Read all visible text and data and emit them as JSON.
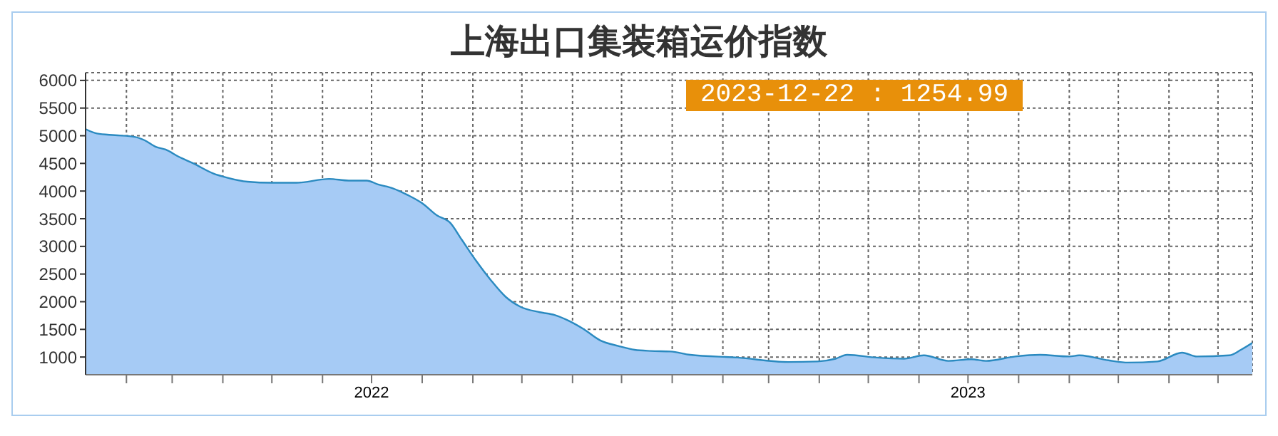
{
  "chart_data": {
    "type": "area",
    "title": "上海出口集装箱运价指数",
    "x": [
      "2022-01-07",
      "2022-01-14",
      "2022-01-25",
      "2022-02-06",
      "2022-02-12",
      "2022-02-19",
      "2022-02-25",
      "2022-03-05",
      "2022-03-14",
      "2022-03-26",
      "2022-04-04",
      "2022-04-16",
      "2022-05-01",
      "2022-05-16",
      "2022-06-05",
      "2022-06-17",
      "2022-06-28",
      "2022-07-05",
      "2022-07-14",
      "2022-07-23",
      "2022-08-01",
      "2022-08-10",
      "2022-08-18",
      "2022-08-25",
      "2022-09-03",
      "2022-09-12",
      "2022-09-21",
      "2022-09-30",
      "2022-10-12",
      "2022-10-21",
      "2022-10-30",
      "2022-11-08",
      "2022-11-18",
      "2022-11-29",
      "2022-12-09",
      "2022-12-19",
      "2022-12-31",
      "2023-01-12",
      "2023-02-10",
      "2023-03-13",
      "2023-03-31",
      "2023-04-11",
      "2023-04-18",
      "2023-05-06",
      "2023-05-23",
      "2023-06-04",
      "2023-06-19",
      "2023-07-03",
      "2023-07-12",
      "2023-07-30",
      "2023-08-14",
      "2023-09-01",
      "2023-09-07",
      "2023-09-25",
      "2023-10-07",
      "2023-10-25",
      "2023-11-09",
      "2023-11-18",
      "2023-12-08",
      "2023-12-15",
      "2023-12-22"
    ],
    "series": [
      {
        "color": "#2a8ac0",
        "values": [
          5120,
          5040,
          5010,
          4980,
          4920,
          4800,
          4750,
          4620,
          4500,
          4320,
          4240,
          4170,
          4150,
          4150,
          4220,
          4190,
          4190,
          4120,
          4050,
          3930,
          3780,
          3560,
          3430,
          3130,
          2740,
          2390,
          2090,
          1910,
          1810,
          1760,
          1650,
          1500,
          1300,
          1200,
          1130,
          1110,
          1100,
          1040,
          990,
          910,
          920,
          970,
          1040,
          990,
          970,
          1030,
          930,
          960,
          930,
          1010,
          1040,
          1010,
          1030,
          940,
          900,
          920,
          1080,
          1010,
          1030,
          1130,
          1254.99
        ]
      }
    ],
    "xlim": [
      "2022-01-07",
      "2023-12-22"
    ],
    "xticks": [
      {
        "value": "2022-02-01",
        "label": null
      },
      {
        "value": "2022-03-01",
        "label": null
      },
      {
        "value": "2022-04-01",
        "label": null
      },
      {
        "value": "2022-05-01",
        "label": null
      },
      {
        "value": "2022-06-01",
        "label": null
      },
      {
        "value": "2022-07-01",
        "label": "2022"
      },
      {
        "value": "2022-08-01",
        "label": null
      },
      {
        "value": "2022-09-01",
        "label": null
      },
      {
        "value": "2022-10-01",
        "label": null
      },
      {
        "value": "2022-11-01",
        "label": null
      },
      {
        "value": "2022-12-01",
        "label": null
      },
      {
        "value": "2023-01-01",
        "label": null
      },
      {
        "value": "2023-02-01",
        "label": null
      },
      {
        "value": "2023-03-01",
        "label": null
      },
      {
        "value": "2023-04-01",
        "label": null
      },
      {
        "value": "2023-05-01",
        "label": null
      },
      {
        "value": "2023-06-01",
        "label": null
      },
      {
        "value": "2023-07-01",
        "label": "2023"
      },
      {
        "value": "2023-08-01",
        "label": null
      },
      {
        "value": "2023-09-01",
        "label": null
      },
      {
        "value": "2023-10-01",
        "label": null
      },
      {
        "value": "2023-11-01",
        "label": null
      },
      {
        "value": "2023-12-01",
        "label": null
      }
    ],
    "ylim": [
      680,
      6140
    ],
    "yticks": [
      1000,
      1500,
      2000,
      2500,
      3000,
      3500,
      4000,
      4500,
      5000,
      5500,
      6000
    ],
    "grid": true,
    "legend": false,
    "marker": "none",
    "annotations": [
      "2023-12-22 : 1254.99"
    ]
  }
}
